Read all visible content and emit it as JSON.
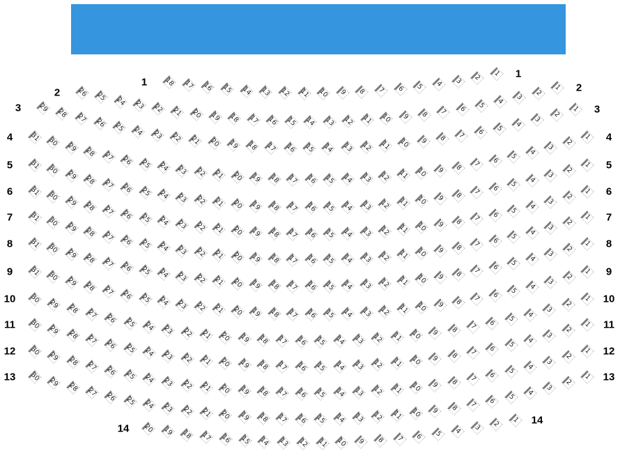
{
  "stage": {
    "color": "#3595de"
  },
  "seat_style": {
    "bar_color": "#7c7c7c",
    "border_color": "#b5b5b5"
  },
  "rows": [
    {
      "label": "1",
      "seats": [
        18,
        17,
        16,
        15,
        14,
        13,
        12,
        11,
        10,
        9,
        8,
        7,
        6,
        5,
        4,
        3,
        2,
        1
      ]
    },
    {
      "label": "2",
      "seats": [
        26,
        25,
        24,
        23,
        22,
        21,
        20,
        19,
        18,
        17,
        16,
        15,
        14,
        13,
        12,
        11,
        10,
        9,
        8,
        7,
        6,
        5,
        4,
        3,
        2,
        1
      ]
    },
    {
      "label": "3",
      "seats": [
        29,
        28,
        27,
        26,
        25,
        24,
        23,
        22,
        21,
        20,
        19,
        18,
        17,
        16,
        15,
        14,
        13,
        12,
        11,
        10,
        9,
        8,
        7,
        6,
        5,
        4,
        3,
        2,
        1
      ]
    },
    {
      "label": "4",
      "seats": [
        31,
        30,
        29,
        28,
        27,
        26,
        25,
        24,
        23,
        22,
        21,
        20,
        19,
        18,
        17,
        16,
        15,
        14,
        13,
        12,
        11,
        10,
        9,
        8,
        7,
        6,
        5,
        4,
        3,
        2,
        1
      ]
    },
    {
      "label": "5",
      "seats": [
        31,
        30,
        29,
        28,
        27,
        26,
        25,
        24,
        23,
        22,
        21,
        20,
        19,
        18,
        17,
        16,
        15,
        14,
        13,
        12,
        11,
        10,
        9,
        8,
        7,
        6,
        5,
        4,
        3,
        2,
        1
      ]
    },
    {
      "label": "6",
      "seats": [
        31,
        30,
        29,
        28,
        27,
        26,
        25,
        24,
        23,
        22,
        21,
        20,
        19,
        18,
        17,
        16,
        15,
        14,
        13,
        12,
        11,
        10,
        9,
        8,
        7,
        6,
        5,
        4,
        3,
        2,
        1
      ]
    },
    {
      "label": "7",
      "seats": [
        31,
        30,
        29,
        28,
        27,
        26,
        25,
        24,
        23,
        22,
        21,
        20,
        19,
        18,
        17,
        16,
        15,
        14,
        13,
        12,
        11,
        10,
        9,
        8,
        7,
        6,
        5,
        4,
        3,
        2,
        1
      ]
    },
    {
      "label": "8",
      "seats": [
        31,
        30,
        29,
        28,
        27,
        26,
        25,
        24,
        23,
        22,
        21,
        20,
        19,
        18,
        17,
        16,
        15,
        14,
        13,
        12,
        11,
        10,
        9,
        8,
        7,
        6,
        5,
        4,
        3,
        2,
        1
      ]
    },
    {
      "label": "9",
      "seats": [
        31,
        30,
        29,
        28,
        27,
        26,
        25,
        24,
        23,
        22,
        21,
        20,
        19,
        18,
        17,
        16,
        15,
        14,
        13,
        12,
        11,
        10,
        9,
        8,
        7,
        6,
        5,
        4,
        3,
        2,
        1
      ]
    },
    {
      "label": "10",
      "seats": [
        30,
        29,
        28,
        27,
        26,
        25,
        24,
        23,
        22,
        21,
        20,
        19,
        18,
        17,
        16,
        15,
        14,
        13,
        12,
        11,
        10,
        9,
        8,
        7,
        6,
        5,
        4,
        3,
        2,
        1
      ]
    },
    {
      "label": "11",
      "seats": [
        30,
        29,
        28,
        27,
        26,
        25,
        24,
        23,
        22,
        21,
        20,
        19,
        18,
        17,
        16,
        15,
        14,
        13,
        12,
        11,
        10,
        9,
        8,
        7,
        6,
        5,
        4,
        3,
        2,
        1
      ]
    },
    {
      "label": "12",
      "seats": [
        30,
        29,
        28,
        27,
        26,
        25,
        24,
        23,
        22,
        21,
        20,
        19,
        18,
        17,
        16,
        15,
        14,
        13,
        12,
        11,
        10,
        9,
        8,
        7,
        6,
        5,
        4,
        3,
        2,
        1
      ]
    },
    {
      "label": "13",
      "seats": [
        30,
        29,
        28,
        27,
        26,
        25,
        24,
        23,
        22,
        21,
        20,
        19,
        18,
        17,
        16,
        15,
        14,
        13,
        12,
        11,
        10,
        9,
        8,
        7,
        6,
        5,
        4,
        3,
        2,
        1
      ]
    },
    {
      "label": "14",
      "seats": [
        20,
        19,
        18,
        17,
        16,
        15,
        14,
        13,
        12,
        11,
        10,
        9,
        8,
        7,
        6,
        5,
        4,
        3,
        2,
        1
      ]
    }
  ]
}
